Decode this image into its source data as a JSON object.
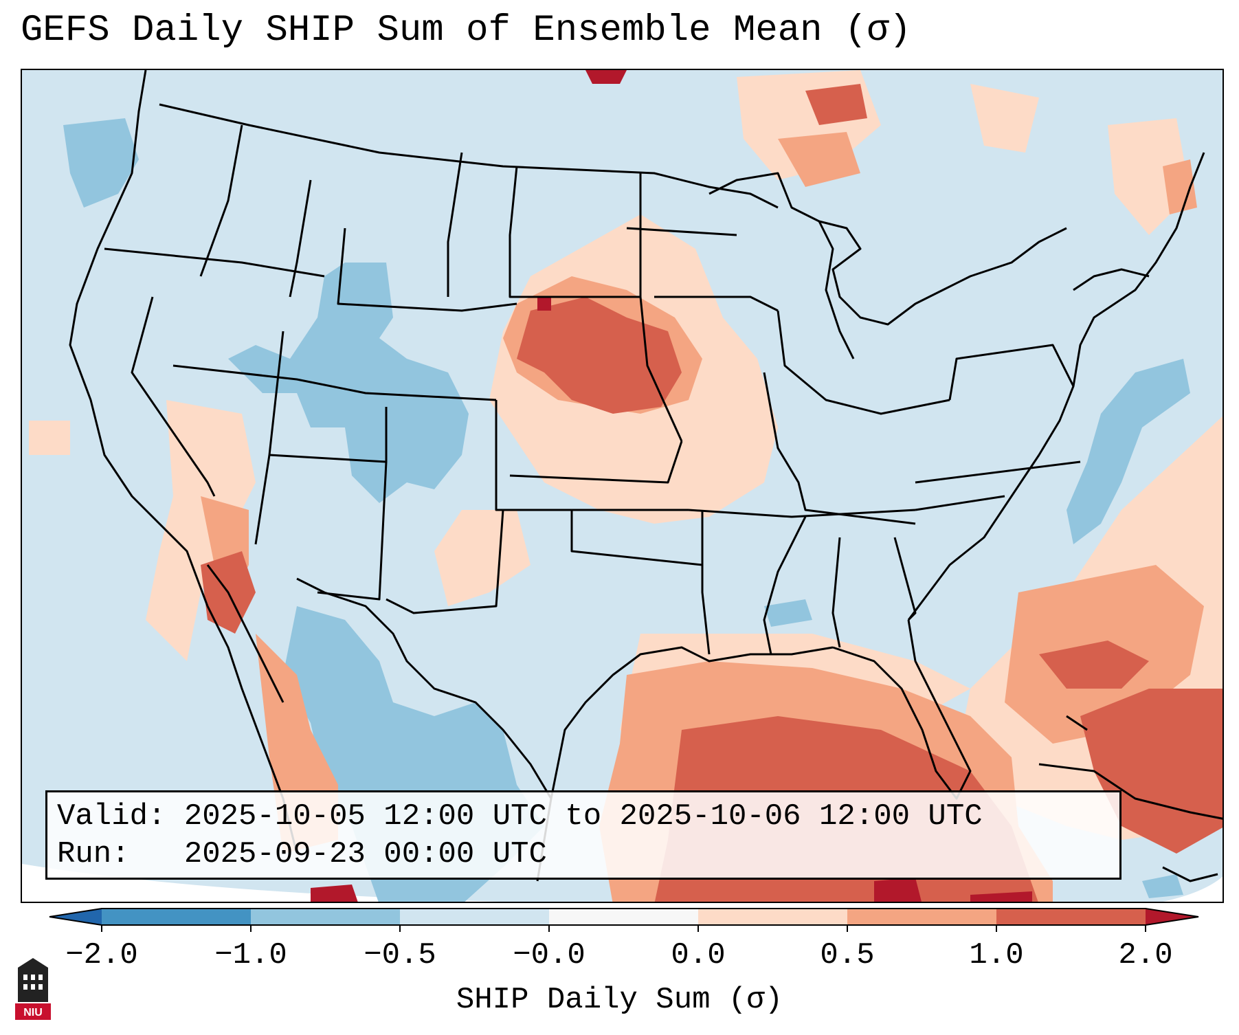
{
  "title": "GEFS Daily SHIP Sum of Ensemble Mean (σ)",
  "info": {
    "valid_label": "Valid:",
    "valid_value": "2025-10-05 12:00 UTC to 2025-10-06 12:00 UTC",
    "run_label": "Run:",
    "run_value": "2025-09-23 00:00 UTC"
  },
  "colorbar": {
    "label": "SHIP Daily Sum (σ)",
    "ticks": [
      "−2.0",
      "−1.0",
      "−0.5",
      "−0.0",
      "0.0",
      "0.5",
      "1.0",
      "2.0"
    ],
    "colors": {
      "under": "#2166ac",
      "n2_n1": "#4393c3",
      "n1_n05": "#92c5de",
      "n05_0": "#d1e5f0",
      "zero": "#f7f7f7",
      "p0_05": "#fddbc7",
      "p05_1": "#f4a582",
      "p1_2": "#d6604d",
      "over": "#b2182b"
    }
  },
  "logo": {
    "text": "NIU",
    "color": "#c8102e"
  },
  "map": {
    "background_color": "#d1e5f0",
    "border_color": "#000000",
    "anomaly_regions": [
      {
        "name": "central-plains",
        "level": "p05_1"
      },
      {
        "name": "nebraska-core",
        "level": "p1_2"
      },
      {
        "name": "gulf-of-mexico",
        "level": "p1_2"
      },
      {
        "name": "western-atlantic",
        "level": "p05_1"
      },
      {
        "name": "colorado-rockies",
        "level": "n1_n05"
      },
      {
        "name": "mexico-interior",
        "level": "n1_n05"
      },
      {
        "name": "atlantic-coast",
        "level": "n1_n05"
      },
      {
        "name": "gulf-of-california",
        "level": "p1_2"
      }
    ]
  }
}
